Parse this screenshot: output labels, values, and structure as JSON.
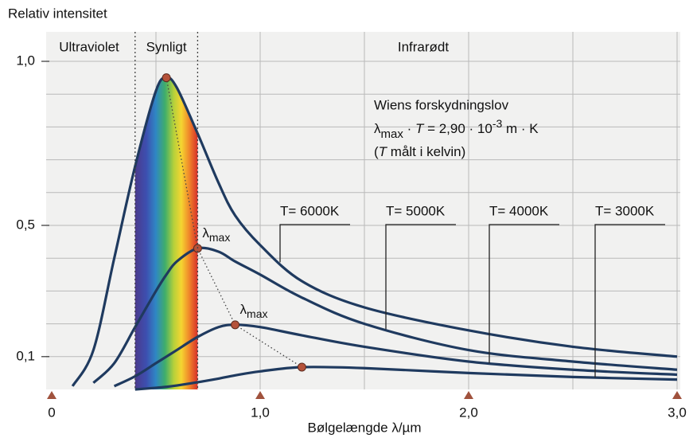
{
  "chart_data": {
    "type": "line",
    "y_label": "Relativ intensitet",
    "x_label": "Bølgelængde λ/µm",
    "x": [
      0.1,
      0.2,
      0.3,
      0.4,
      0.5,
      0.55,
      0.6,
      0.7,
      0.8,
      0.88,
      1.0,
      1.2,
      1.5,
      2.0,
      2.5,
      3.0
    ],
    "series": [
      {
        "name": "T= 6000K",
        "color": "#1f3a5f",
        "values": [
          0.01,
          0.12,
          0.4,
          0.68,
          0.91,
          0.95,
          0.92,
          0.78,
          0.63,
          0.53,
          0.44,
          0.33,
          0.25,
          0.18,
          0.13,
          0.1
        ]
      },
      {
        "name": "T= 5000K",
        "color": "#1f3a5f",
        "values": [
          null,
          0.02,
          0.08,
          0.19,
          0.3,
          0.35,
          0.39,
          0.43,
          0.42,
          0.39,
          0.35,
          0.28,
          0.2,
          0.12,
          0.085,
          0.06
        ]
      },
      {
        "name": "T= 4000K",
        "color": "#1f3a5f",
        "values": [
          null,
          null,
          0.01,
          0.04,
          0.08,
          0.1,
          0.12,
          0.16,
          0.19,
          0.197,
          0.19,
          0.165,
          0.13,
          0.085,
          0.06,
          0.045
        ]
      },
      {
        "name": "T= 3000K",
        "color": "#1f3a5f",
        "values": [
          null,
          null,
          null,
          0.0,
          0.005,
          0.008,
          0.012,
          0.022,
          0.033,
          0.043,
          0.055,
          0.068,
          0.065,
          0.05,
          0.038,
          0.03
        ]
      }
    ],
    "peak_color": "#b5523a",
    "xlim": [
      0,
      3.0
    ],
    "ylim": [
      0,
      1.0
    ],
    "xticks": [
      0,
      {
        "value": 1.0,
        "label": "1,0"
      },
      {
        "value": 2.0,
        "label": "2,0"
      },
      {
        "value": 3.0,
        "label": "3,0"
      }
    ],
    "yticks": [
      {
        "value": 0.1,
        "label": "0,1"
      },
      {
        "value": 0.5,
        "label": "0,5"
      },
      {
        "value": 1.0,
        "label": "1,0"
      }
    ],
    "xgrid": [
      0.5,
      1.0,
      1.5,
      2.0,
      2.5,
      3.0
    ],
    "ygrid": [
      0.1,
      0.2,
      0.3,
      0.4,
      0.5,
      0.6,
      0.7,
      0.8,
      0.9,
      1.0
    ],
    "regions": [
      "Ultraviolet",
      "Synligt",
      "Infrarødt"
    ],
    "region_bounds": [
      0.4,
      0.7
    ],
    "lambda_max_labels": [
      {
        "symbol": "λ",
        "subscript": "max"
      },
      {
        "symbol": "λ",
        "subscript": "max"
      }
    ],
    "annotation": {
      "title": "Wiens forskydningslov",
      "formula": [
        "λ",
        "max",
        " · ",
        "T",
        " = 2,90 · 10",
        "-3",
        " m · K"
      ],
      "note": [
        "(",
        "T",
        " målt i kelvin)"
      ]
    }
  }
}
